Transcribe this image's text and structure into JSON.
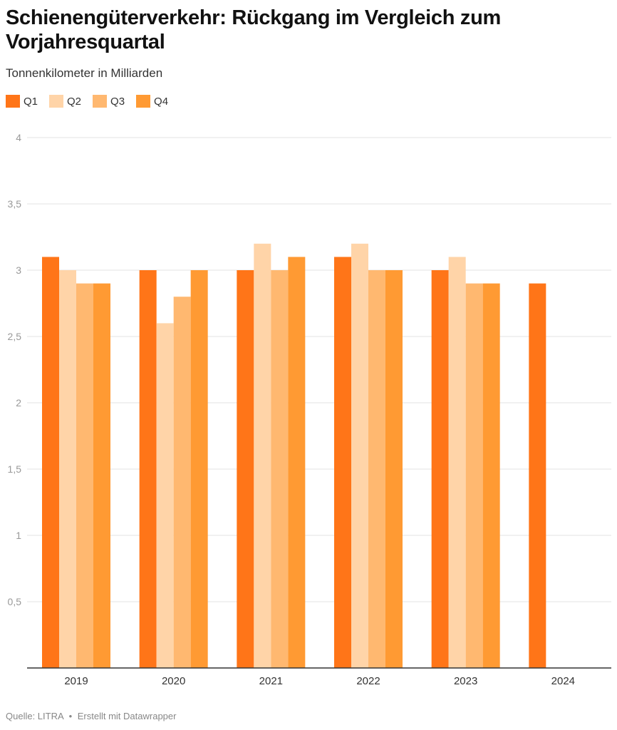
{
  "header": {
    "title": "Schienengüterverkehr: Rückgang im Vergleich zum Vorjahresquartal",
    "subtitle": "Tonnenkilometer in Milliarden"
  },
  "footer": {
    "source": "Quelle: LITRA",
    "separator": "•",
    "credit": "Erstellt mit Datawrapper"
  },
  "chart_data": {
    "type": "bar",
    "title": "Schienengüterverkehr: Rückgang im Vergleich zum Vorjahresquartal",
    "subtitle": "Tonnenkilometer in Milliarden",
    "categories": [
      "2019",
      "2020",
      "2021",
      "2022",
      "2023",
      "2024"
    ],
    "series": [
      {
        "name": "Q1",
        "color": "#ff7518",
        "values": [
          3.1,
          3.0,
          3.0,
          3.1,
          3.0,
          2.9
        ]
      },
      {
        "name": "Q2",
        "color": "#ffd4a8",
        "values": [
          3.0,
          2.6,
          3.2,
          3.2,
          3.1,
          null
        ]
      },
      {
        "name": "Q3",
        "color": "#ffb870",
        "values": [
          2.9,
          2.8,
          3.0,
          3.0,
          2.9,
          null
        ]
      },
      {
        "name": "Q4",
        "color": "#ff9a33",
        "values": [
          2.9,
          3.0,
          3.1,
          3.0,
          2.9,
          null
        ]
      }
    ],
    "ylim": [
      0,
      4
    ],
    "yticks": [
      0.5,
      1,
      1.5,
      2,
      2.5,
      3,
      3.5,
      4
    ],
    "ytick_labels": [
      "0,5",
      "1",
      "1,5",
      "2",
      "2,5",
      "3",
      "3,5",
      "4"
    ],
    "grid": true,
    "legend": "top-left"
  }
}
